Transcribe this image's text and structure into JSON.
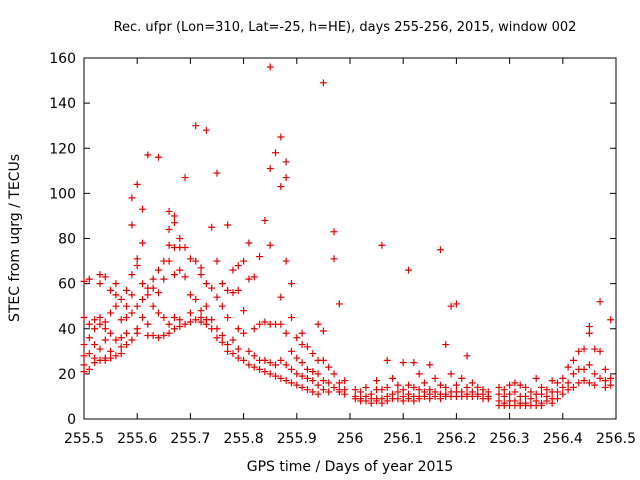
{
  "chart_data": {
    "type": "scatter",
    "title": "Rec. ufpr (Lon=310, Lat=-25, h=HE), days 255-256, 2015, window 002",
    "xlabel": "GPS time / Days of year 2015",
    "ylabel": "STEC from uqrg / TECUs",
    "xlim": [
      255.5,
      256.5
    ],
    "ylim": [
      0,
      160
    ],
    "xticks": [
      "255.5",
      "255.6",
      "255.7",
      "255.8",
      "255.9",
      "256",
      "256.1",
      "256.2",
      "256.3",
      "256.4",
      "256.5"
    ],
    "yticks": [
      "0",
      "20",
      "40",
      "60",
      "80",
      "100",
      "120",
      "140",
      "160"
    ],
    "grid": false,
    "marker": "plus",
    "color": "#e00000",
    "points": [
      [
        255.5,
        61
      ],
      [
        255.5,
        45
      ],
      [
        255.5,
        33
      ],
      [
        255.5,
        28
      ],
      [
        255.5,
        24
      ],
      [
        255.5,
        21
      ],
      [
        255.51,
        62
      ],
      [
        255.51,
        42
      ],
      [
        255.51,
        36
      ],
      [
        255.51,
        29
      ],
      [
        255.51,
        22
      ],
      [
        255.52,
        44
      ],
      [
        255.52,
        40
      ],
      [
        255.52,
        33
      ],
      [
        255.52,
        27
      ],
      [
        255.52,
        25
      ],
      [
        255.53,
        64
      ],
      [
        255.53,
        60
      ],
      [
        255.53,
        45
      ],
      [
        255.53,
        42
      ],
      [
        255.53,
        31
      ],
      [
        255.53,
        26
      ],
      [
        255.54,
        63
      ],
      [
        255.54,
        43
      ],
      [
        255.54,
        40
      ],
      [
        255.54,
        35
      ],
      [
        255.54,
        27
      ],
      [
        255.54,
        26
      ],
      [
        255.55,
        57
      ],
      [
        255.55,
        47
      ],
      [
        255.55,
        38
      ],
      [
        255.55,
        30
      ],
      [
        255.55,
        27
      ],
      [
        255.56,
        60
      ],
      [
        255.56,
        55
      ],
      [
        255.56,
        50
      ],
      [
        255.56,
        35
      ],
      [
        255.56,
        28
      ],
      [
        255.57,
        53
      ],
      [
        255.57,
        44
      ],
      [
        255.57,
        36
      ],
      [
        255.57,
        32
      ],
      [
        255.57,
        29
      ],
      [
        255.58,
        57
      ],
      [
        255.58,
        50
      ],
      [
        255.58,
        45
      ],
      [
        255.58,
        38
      ],
      [
        255.58,
        33
      ],
      [
        255.59,
        98
      ],
      [
        255.59,
        86
      ],
      [
        255.59,
        64
      ],
      [
        255.59,
        55
      ],
      [
        255.59,
        47
      ],
      [
        255.59,
        35
      ],
      [
        255.6,
        104
      ],
      [
        255.6,
        71
      ],
      [
        255.6,
        68
      ],
      [
        255.6,
        50
      ],
      [
        255.6,
        40
      ],
      [
        255.6,
        38
      ],
      [
        255.61,
        93
      ],
      [
        255.61,
        78
      ],
      [
        255.61,
        60
      ],
      [
        255.61,
        53
      ],
      [
        255.61,
        45
      ],
      [
        255.62,
        117
      ],
      [
        255.62,
        58
      ],
      [
        255.62,
        55
      ],
      [
        255.62,
        42
      ],
      [
        255.62,
        37
      ],
      [
        255.63,
        62
      ],
      [
        255.63,
        58
      ],
      [
        255.63,
        50
      ],
      [
        255.63,
        37
      ],
      [
        255.64,
        116
      ],
      [
        255.64,
        66
      ],
      [
        255.64,
        56
      ],
      [
        255.64,
        47
      ],
      [
        255.64,
        36
      ],
      [
        255.65,
        70
      ],
      [
        255.65,
        62
      ],
      [
        255.65,
        45
      ],
      [
        255.65,
        37
      ],
      [
        255.66,
        92
      ],
      [
        255.66,
        84
      ],
      [
        255.66,
        77
      ],
      [
        255.66,
        70
      ],
      [
        255.66,
        42
      ],
      [
        255.66,
        38
      ],
      [
        255.67,
        90
      ],
      [
        255.67,
        87
      ],
      [
        255.67,
        76
      ],
      [
        255.67,
        64
      ],
      [
        255.67,
        45
      ],
      [
        255.67,
        40
      ],
      [
        255.68,
        80
      ],
      [
        255.68,
        76
      ],
      [
        255.68,
        66
      ],
      [
        255.68,
        44
      ],
      [
        255.68,
        41
      ],
      [
        255.69,
        107
      ],
      [
        255.69,
        76
      ],
      [
        255.69,
        63
      ],
      [
        255.69,
        42
      ],
      [
        255.7,
        71
      ],
      [
        255.7,
        55
      ],
      [
        255.7,
        47
      ],
      [
        255.7,
        43
      ],
      [
        255.71,
        130
      ],
      [
        255.71,
        70
      ],
      [
        255.71,
        53
      ],
      [
        255.71,
        44
      ],
      [
        255.72,
        67
      ],
      [
        255.72,
        64
      ],
      [
        255.72,
        48
      ],
      [
        255.72,
        45
      ],
      [
        255.72,
        43
      ],
      [
        255.73,
        128
      ],
      [
        255.73,
        60
      ],
      [
        255.73,
        50
      ],
      [
        255.73,
        44
      ],
      [
        255.73,
        42
      ],
      [
        255.74,
        85
      ],
      [
        255.74,
        58
      ],
      [
        255.74,
        44
      ],
      [
        255.74,
        40
      ],
      [
        255.75,
        109
      ],
      [
        255.75,
        70
      ],
      [
        255.75,
        54
      ],
      [
        255.75,
        40
      ],
      [
        255.75,
        36
      ],
      [
        255.76,
        60
      ],
      [
        255.76,
        50
      ],
      [
        255.76,
        37
      ],
      [
        255.76,
        34
      ],
      [
        255.77,
        86
      ],
      [
        255.77,
        57
      ],
      [
        255.77,
        45
      ],
      [
        255.77,
        33
      ],
      [
        255.77,
        30
      ],
      [
        255.78,
        66
      ],
      [
        255.78,
        56
      ],
      [
        255.78,
        35
      ],
      [
        255.78,
        29
      ],
      [
        255.79,
        68
      ],
      [
        255.79,
        57
      ],
      [
        255.79,
        40
      ],
      [
        255.79,
        31
      ],
      [
        255.79,
        27
      ],
      [
        255.8,
        70
      ],
      [
        255.8,
        48
      ],
      [
        255.8,
        38
      ],
      [
        255.8,
        26
      ],
      [
        255.81,
        78
      ],
      [
        255.81,
        62
      ],
      [
        255.81,
        30
      ],
      [
        255.81,
        24
      ],
      [
        255.82,
        63
      ],
      [
        255.82,
        40
      ],
      [
        255.82,
        28
      ],
      [
        255.82,
        23
      ],
      [
        255.83,
        72
      ],
      [
        255.83,
        42
      ],
      [
        255.83,
        26
      ],
      [
        255.83,
        22
      ],
      [
        255.84,
        88
      ],
      [
        255.84,
        43
      ],
      [
        255.84,
        26
      ],
      [
        255.84,
        21
      ],
      [
        255.85,
        156
      ],
      [
        255.85,
        111
      ],
      [
        255.85,
        77
      ],
      [
        255.85,
        42
      ],
      [
        255.85,
        25
      ],
      [
        255.85,
        20
      ],
      [
        255.86,
        118
      ],
      [
        255.86,
        42
      ],
      [
        255.86,
        24
      ],
      [
        255.86,
        19
      ],
      [
        255.87,
        125
      ],
      [
        255.87,
        103
      ],
      [
        255.87,
        54
      ],
      [
        255.87,
        42
      ],
      [
        255.87,
        26
      ],
      [
        255.87,
        18
      ],
      [
        255.88,
        114
      ],
      [
        255.88,
        107
      ],
      [
        255.88,
        70
      ],
      [
        255.88,
        38
      ],
      [
        255.88,
        24
      ],
      [
        255.88,
        17
      ],
      [
        255.89,
        60
      ],
      [
        255.89,
        45
      ],
      [
        255.89,
        30
      ],
      [
        255.89,
        22
      ],
      [
        255.89,
        16
      ],
      [
        255.9,
        36
      ],
      [
        255.9,
        27
      ],
      [
        255.9,
        20
      ],
      [
        255.9,
        15
      ],
      [
        255.91,
        38
      ],
      [
        255.91,
        33
      ],
      [
        255.91,
        25
      ],
      [
        255.91,
        19
      ],
      [
        255.91,
        14
      ],
      [
        255.92,
        32
      ],
      [
        255.92,
        22
      ],
      [
        255.92,
        18
      ],
      [
        255.92,
        13
      ],
      [
        255.93,
        29
      ],
      [
        255.93,
        21
      ],
      [
        255.93,
        17
      ],
      [
        255.93,
        12
      ],
      [
        255.94,
        42
      ],
      [
        255.94,
        26
      ],
      [
        255.94,
        20
      ],
      [
        255.94,
        15
      ],
      [
        255.94,
        11
      ],
      [
        255.95,
        149
      ],
      [
        255.95,
        39
      ],
      [
        255.95,
        26
      ],
      [
        255.95,
        17
      ],
      [
        255.95,
        13
      ],
      [
        255.96,
        23
      ],
      [
        255.96,
        16
      ],
      [
        255.96,
        12
      ],
      [
        255.97,
        83
      ],
      [
        255.97,
        71
      ],
      [
        255.97,
        20
      ],
      [
        255.97,
        14
      ],
      [
        255.98,
        51
      ],
      [
        255.98,
        16
      ],
      [
        255.98,
        13
      ],
      [
        255.98,
        12
      ],
      [
        255.99,
        17
      ],
      [
        255.99,
        13
      ],
      [
        255.99,
        11
      ],
      [
        256.01,
        13
      ],
      [
        256.01,
        10
      ],
      [
        256.01,
        9
      ],
      [
        256.02,
        12
      ],
      [
        256.02,
        9
      ],
      [
        256.02,
        8
      ],
      [
        256.03,
        14
      ],
      [
        256.03,
        10
      ],
      [
        256.03,
        8
      ],
      [
        256.04,
        11
      ],
      [
        256.04,
        9
      ],
      [
        256.04,
        7
      ],
      [
        256.05,
        17
      ],
      [
        256.05,
        13
      ],
      [
        256.05,
        9
      ],
      [
        256.05,
        8
      ],
      [
        256.06,
        77
      ],
      [
        256.06,
        13
      ],
      [
        256.06,
        9
      ],
      [
        256.06,
        7
      ],
      [
        256.07,
        26
      ],
      [
        256.07,
        14
      ],
      [
        256.07,
        10
      ],
      [
        256.07,
        8
      ],
      [
        256.08,
        18
      ],
      [
        256.08,
        11
      ],
      [
        256.08,
        9
      ],
      [
        256.09,
        15
      ],
      [
        256.09,
        12
      ],
      [
        256.09,
        9
      ],
      [
        256.1,
        25
      ],
      [
        256.1,
        13
      ],
      [
        256.1,
        10
      ],
      [
        256.1,
        8
      ],
      [
        256.11,
        66
      ],
      [
        256.11,
        15
      ],
      [
        256.11,
        11
      ],
      [
        256.11,
        9
      ],
      [
        256.12,
        25
      ],
      [
        256.12,
        14
      ],
      [
        256.12,
        10
      ],
      [
        256.12,
        8
      ],
      [
        256.13,
        20
      ],
      [
        256.13,
        13
      ],
      [
        256.13,
        10
      ],
      [
        256.13,
        9
      ],
      [
        256.14,
        16
      ],
      [
        256.14,
        12
      ],
      [
        256.14,
        10
      ],
      [
        256.15,
        24
      ],
      [
        256.15,
        13
      ],
      [
        256.15,
        11
      ],
      [
        256.15,
        9
      ],
      [
        256.16,
        18
      ],
      [
        256.16,
        12
      ],
      [
        256.16,
        10
      ],
      [
        256.17,
        75
      ],
      [
        256.17,
        15
      ],
      [
        256.17,
        11
      ],
      [
        256.17,
        9
      ],
      [
        256.18,
        33
      ],
      [
        256.18,
        14
      ],
      [
        256.18,
        11
      ],
      [
        256.18,
        10
      ],
      [
        256.19,
        50
      ],
      [
        256.19,
        20
      ],
      [
        256.19,
        12
      ],
      [
        256.19,
        10
      ],
      [
        256.2,
        51
      ],
      [
        256.2,
        15
      ],
      [
        256.2,
        12
      ],
      [
        256.2,
        10
      ],
      [
        256.21,
        18
      ],
      [
        256.21,
        12
      ],
      [
        256.21,
        10
      ],
      [
        256.22,
        28
      ],
      [
        256.22,
        14
      ],
      [
        256.22,
        11
      ],
      [
        256.22,
        10
      ],
      [
        256.23,
        16
      ],
      [
        256.23,
        12
      ],
      [
        256.23,
        10
      ],
      [
        256.24,
        14
      ],
      [
        256.24,
        11
      ],
      [
        256.24,
        10
      ],
      [
        256.25,
        13
      ],
      [
        256.25,
        11
      ],
      [
        256.25,
        9
      ],
      [
        256.26,
        12
      ],
      [
        256.26,
        10
      ],
      [
        256.26,
        9
      ],
      [
        256.28,
        14
      ],
      [
        256.28,
        11
      ],
      [
        256.28,
        8
      ],
      [
        256.28,
        6
      ],
      [
        256.29,
        13
      ],
      [
        256.29,
        10
      ],
      [
        256.29,
        7
      ],
      [
        256.29,
        6
      ],
      [
        256.3,
        15
      ],
      [
        256.3,
        11
      ],
      [
        256.3,
        8
      ],
      [
        256.3,
        6
      ],
      [
        256.31,
        16
      ],
      [
        256.31,
        12
      ],
      [
        256.31,
        8
      ],
      [
        256.31,
        6
      ],
      [
        256.32,
        15
      ],
      [
        256.32,
        10
      ],
      [
        256.32,
        7
      ],
      [
        256.32,
        6
      ],
      [
        256.33,
        14
      ],
      [
        256.33,
        10
      ],
      [
        256.33,
        7
      ],
      [
        256.33,
        6
      ],
      [
        256.34,
        12
      ],
      [
        256.34,
        9
      ],
      [
        256.34,
        6
      ],
      [
        256.35,
        18
      ],
      [
        256.35,
        11
      ],
      [
        256.35,
        8
      ],
      [
        256.35,
        6
      ],
      [
        256.36,
        14
      ],
      [
        256.36,
        11
      ],
      [
        256.36,
        7
      ],
      [
        256.36,
        6
      ],
      [
        256.37,
        13
      ],
      [
        256.37,
        10
      ],
      [
        256.37,
        8
      ],
      [
        256.38,
        17
      ],
      [
        256.38,
        12
      ],
      [
        256.38,
        9
      ],
      [
        256.38,
        7
      ],
      [
        256.39,
        16
      ],
      [
        256.39,
        12
      ],
      [
        256.39,
        9
      ],
      [
        256.4,
        18
      ],
      [
        256.4,
        14
      ],
      [
        256.4,
        11
      ],
      [
        256.41,
        23
      ],
      [
        256.41,
        16
      ],
      [
        256.41,
        13
      ],
      [
        256.42,
        26
      ],
      [
        256.42,
        20
      ],
      [
        256.42,
        14
      ],
      [
        256.43,
        30
      ],
      [
        256.43,
        22
      ],
      [
        256.43,
        16
      ],
      [
        256.44,
        31
      ],
      [
        256.44,
        22
      ],
      [
        256.44,
        17
      ],
      [
        256.45,
        41
      ],
      [
        256.45,
        38
      ],
      [
        256.45,
        24
      ],
      [
        256.45,
        16
      ],
      [
        256.46,
        31
      ],
      [
        256.46,
        20
      ],
      [
        256.46,
        15
      ],
      [
        256.47,
        52
      ],
      [
        256.47,
        30
      ],
      [
        256.47,
        18
      ],
      [
        256.48,
        22
      ],
      [
        256.48,
        17
      ],
      [
        256.48,
        14
      ],
      [
        256.49,
        44
      ],
      [
        256.49,
        18
      ],
      [
        256.49,
        15
      ]
    ]
  }
}
